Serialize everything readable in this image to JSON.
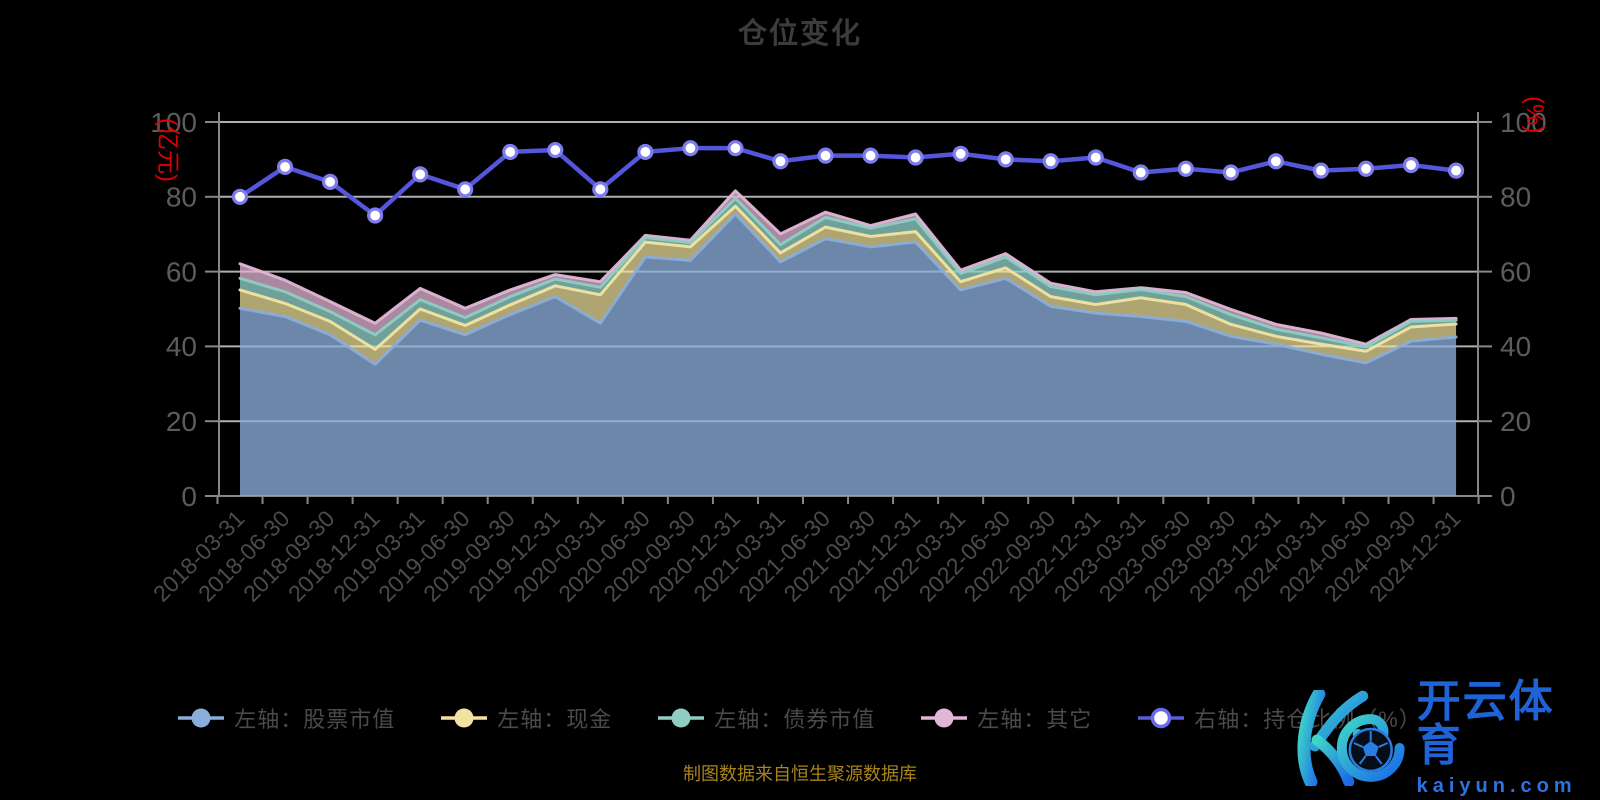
{
  "title": "仓位变化",
  "footer": "制图数据来自恒生聚源数据库",
  "watermark": {
    "brand": "开云体育",
    "domain": "kaiyun.com",
    "logo": "kaiyun-k-football-logo",
    "color": "#1e63d8"
  },
  "axes": {
    "left_name": "(亿元)",
    "right_name": "(%)",
    "name_color": "#dd0000",
    "y_ticks": [
      0,
      20,
      40,
      60,
      80,
      100
    ],
    "tick_label_color": "#5c5c5c",
    "x_label_color": "#4b4b4b",
    "axis_line_color": "#878787",
    "grid_color": "#cfcfcf"
  },
  "legend": {
    "position": "bottom",
    "items": [
      {
        "label": "左轴：股票市值",
        "color": "#8aadd9",
        "marker": "solid"
      },
      {
        "label": "左轴：现金",
        "color": "#f2e4a0",
        "marker": "solid"
      },
      {
        "label": "左轴：债券市值",
        "color": "#8ecdc4",
        "marker": "solid"
      },
      {
        "label": "左轴：其它",
        "color": "#e2b6d6",
        "marker": "solid"
      },
      {
        "label": "右轴：持仓比例（%）",
        "color": "#5b5be0",
        "marker": "hollow"
      }
    ]
  },
  "chart_data": {
    "type": "area",
    "subtype": "stacked-area-with-line",
    "grid": true,
    "legend_position": "bottom",
    "x_label_rotate": 45,
    "ylabel_left": "(亿元)",
    "ylabel_right": "(%)",
    "ylim_left": [
      0,
      100
    ],
    "ylim_right": [
      0,
      100
    ],
    "categories": [
      "2018-03-31",
      "2018-06-30",
      "2018-09-30",
      "2018-12-31",
      "2019-03-31",
      "2019-06-30",
      "2019-09-30",
      "2019-12-31",
      "2020-03-31",
      "2020-06-30",
      "2020-09-30",
      "2020-12-31",
      "2021-03-31",
      "2021-06-30",
      "2021-09-30",
      "2021-12-31",
      "2022-03-31",
      "2022-06-30",
      "2022-09-30",
      "2022-12-31",
      "2023-03-31",
      "2023-06-30",
      "2023-09-30",
      "2023-12-31",
      "2024-03-31",
      "2024-06-30",
      "2024-09-30",
      "2024-12-31"
    ],
    "series": [
      {
        "name": "左轴：股票市值",
        "axis": "left",
        "stack": true,
        "color": "#8aadd9",
        "fill_opacity": 0.78,
        "values": [
          50.2,
          48.0,
          43.1,
          35.2,
          47.0,
          43.1,
          48.5,
          53.3,
          46.2,
          63.9,
          63.0,
          75.4,
          62.6,
          68.8,
          66.6,
          67.9,
          55.1,
          58.2,
          50.7,
          48.9,
          48.0,
          46.7,
          42.7,
          40.6,
          37.9,
          35.6,
          41.4,
          42.5
        ]
      },
      {
        "name": "左轴：现金",
        "axis": "left",
        "stack": true,
        "color": "#f2e4a0",
        "fill_opacity": 0.72,
        "values": [
          4.9,
          3.5,
          3.6,
          4.0,
          3.0,
          2.5,
          2.6,
          2.9,
          7.6,
          4.0,
          3.6,
          2.1,
          2.4,
          3.1,
          2.8,
          2.8,
          2.2,
          2.8,
          2.6,
          2.3,
          5.0,
          4.5,
          3.2,
          2.1,
          2.7,
          3.1,
          3.8,
          3.5
        ]
      },
      {
        "name": "左轴：债券市值",
        "axis": "left",
        "stack": true,
        "color": "#8ecdc4",
        "fill_opacity": 0.78,
        "values": [
          3.1,
          3.1,
          2.6,
          3.9,
          2.5,
          2.1,
          2.2,
          1.8,
          2.0,
          1.2,
          1.1,
          2.1,
          2.2,
          2.6,
          2.2,
          3.4,
          2.2,
          2.9,
          2.7,
          2.6,
          2.2,
          2.1,
          2.6,
          1.9,
          1.7,
          1.2,
          1.5,
          1.0
        ]
      },
      {
        "name": "左轴：其它",
        "axis": "left",
        "stack": true,
        "color": "#e2b6d6",
        "fill_opacity": 0.75,
        "values": [
          3.9,
          3.1,
          2.7,
          3.1,
          3.0,
          2.5,
          1.8,
          1.2,
          1.5,
          0.6,
          0.7,
          2.0,
          2.9,
          1.4,
          0.7,
          1.3,
          0.9,
          0.9,
          0.9,
          0.8,
          0.5,
          1.1,
          1.4,
          1.3,
          1.3,
          0.7,
          0.5,
          0.5
        ]
      },
      {
        "name": "右轴：持仓比例（%）",
        "axis": "right",
        "stack": false,
        "type": "line",
        "color": "#5456db",
        "point_fill": "#ffffff",
        "values": [
          80,
          88,
          84,
          75,
          86,
          82,
          92,
          92.5,
          82,
          92,
          93,
          93,
          89.5,
          91,
          91,
          90.5,
          91.5,
          90,
          89.5,
          90.5,
          86.5,
          87.5,
          86.5,
          89.5,
          87,
          87.5,
          88.5,
          87
        ]
      }
    ]
  }
}
